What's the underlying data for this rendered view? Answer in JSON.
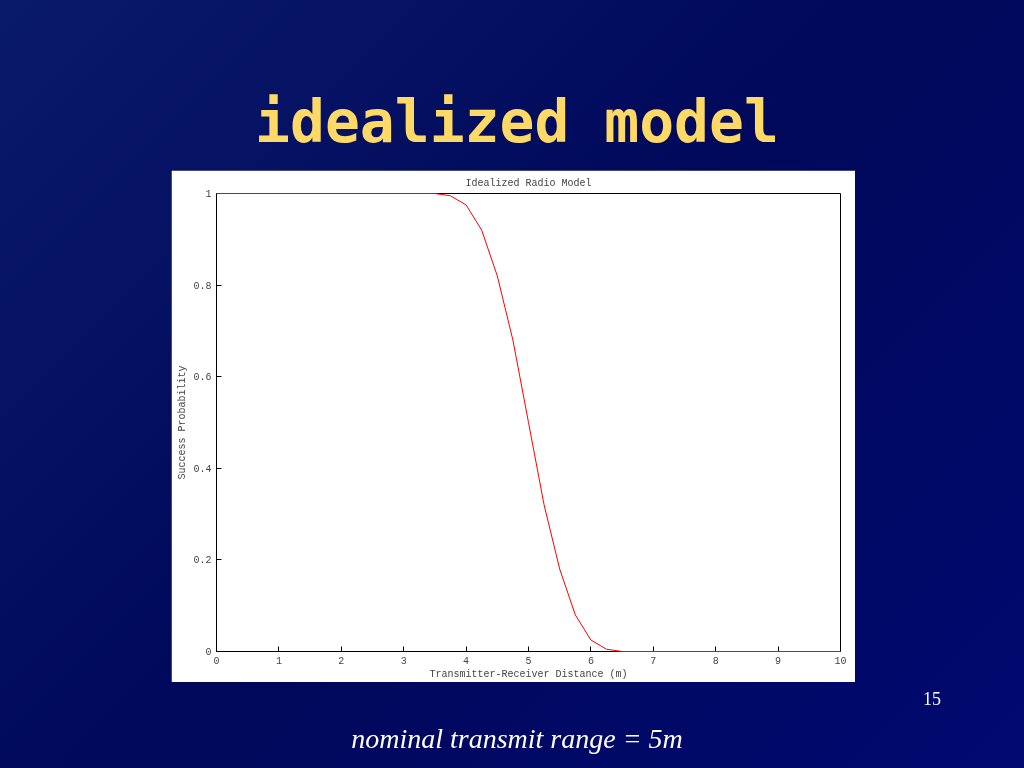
{
  "chart_data": {
    "type": "line",
    "title": "idealized model",
    "subtitle": "Idealized Radio Model",
    "xlabel": "Transmitter-Receiver Distance (m)",
    "ylabel": "Success Probability",
    "x": [
      0,
      3.5,
      3.75,
      4,
      4.25,
      4.5,
      4.75,
      5,
      5.25,
      5.5,
      5.75,
      6,
      6.25,
      6.5,
      10
    ],
    "series": [
      {
        "color": "#ff0000",
        "values": [
          1,
          1,
          0.995,
          0.975,
          0.92,
          0.82,
          0.68,
          0.5,
          0.32,
          0.18,
          0.08,
          0.025,
          0.005,
          0,
          0
        ]
      }
    ],
    "xlim": [
      0,
      10
    ],
    "ylim": [
      0,
      1
    ],
    "xticks": [
      0,
      1,
      2,
      3,
      4,
      5,
      6,
      7,
      8,
      9,
      10
    ],
    "yticks": [
      0,
      0.2,
      0.4,
      0.6,
      0.8,
      1
    ],
    "grid": false,
    "marker": "none",
    "line_style": "solid",
    "annotations": [
      "15",
      "nominal transmit range = 5m"
    ]
  }
}
